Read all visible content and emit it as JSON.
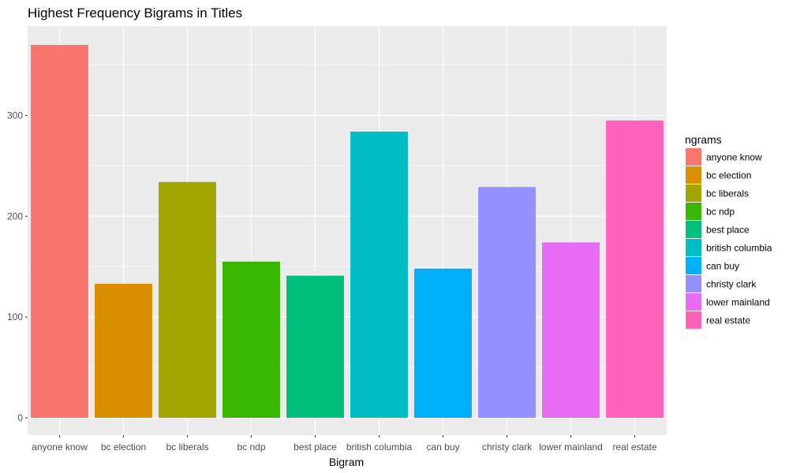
{
  "chart_data": {
    "type": "bar",
    "title": "Highest Frequency Bigrams in Titles",
    "xlabel": "Bigram",
    "ylabel": "",
    "categories": [
      "anyone know",
      "bc election",
      "bc liberals",
      "bc ndp",
      "best place",
      "british columbia",
      "can buy",
      "christy clark",
      "lower mainland",
      "real estate"
    ],
    "values": [
      370,
      133,
      234,
      155,
      141,
      284,
      148,
      229,
      174,
      295
    ],
    "colors": [
      "#F8766D",
      "#D89000",
      "#A3A500",
      "#39B600",
      "#00BF7D",
      "#00BFC4",
      "#00B0F6",
      "#9590FF",
      "#E76BF3",
      "#FF62BC"
    ],
    "yticks": [
      0,
      100,
      200,
      300
    ],
    "ylim": [
      0,
      380
    ],
    "grid": true,
    "legend": {
      "title": "ngrams",
      "position": "right"
    },
    "style": {
      "panel_bg": "#EBEBEB",
      "grid_color": "#FFFFFF",
      "tick_label_color": "#4D4D4D"
    }
  }
}
